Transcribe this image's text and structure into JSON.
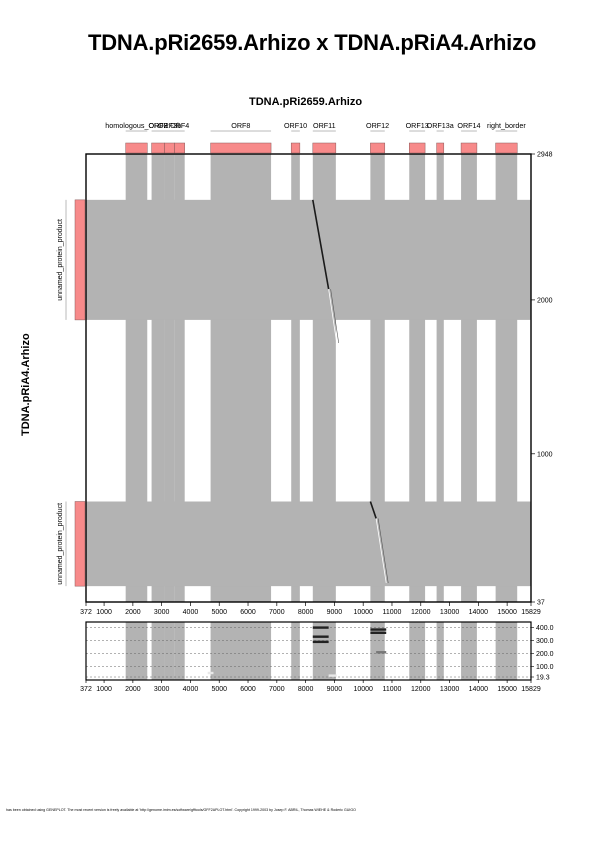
{
  "title": "TDNA.pRi2659.Arhizo x TDNA.pRiA4.Arhizo",
  "footer": "has been obtained using GENEPLOT. The most recent version is freely available at 'http://genome.imim.es/software/gfftools/GFF2APLOT.html'. Copyright 1999-2003 by Josep F. ABRIL, Thomas WIEHE & Roderic GUIGO",
  "chart_data": [
    {
      "type": "scatter",
      "subtype": "dotplot",
      "xlabel": "TDNA.pRi2659.Arhizo",
      "ylabel": "TDNA.pRiA4.Arhizo",
      "xlim": [
        372,
        15829
      ],
      "ylim": [
        37,
        2948
      ],
      "x_ticks": [
        "372",
        "1000",
        "2000",
        "3000",
        "4000",
        "5000",
        "6000",
        "7000",
        "8000",
        "9000",
        "10000",
        "11000",
        "12000",
        "13000",
        "14000",
        "15000",
        "15829"
      ],
      "y_ticks": [
        "37",
        "1000",
        "2000",
        "2948"
      ],
      "x_features": [
        {
          "label": "homologous_ORF2",
          "start": 1750,
          "end": 2500
        },
        {
          "label": "ORF3",
          "start": 2650,
          "end": 3100
        },
        {
          "label": "ORF3b",
          "start": 3100,
          "end": 3450
        },
        {
          "label": "ORF4",
          "start": 3450,
          "end": 3800
        },
        {
          "label": "ORF8",
          "start": 4700,
          "end": 6800
        },
        {
          "label": "ORF10",
          "start": 7500,
          "end": 7800
        },
        {
          "label": "ORF11",
          "start": 8250,
          "end": 9050
        },
        {
          "label": "ORF12",
          "start": 10250,
          "end": 10750
        },
        {
          "label": "ORF13",
          "start": 11600,
          "end": 12150
        },
        {
          "label": "ORF13a",
          "start": 12550,
          "end": 12800
        },
        {
          "label": "ORF14",
          "start": 13400,
          "end": 13950
        },
        {
          "label": "right_border",
          "start": 14600,
          "end": 15350
        }
      ],
      "y_features": [
        {
          "label": "unnamed_protein_product",
          "start": 1870,
          "end": 2650
        },
        {
          "label": "unnamed_protein_product",
          "start": 140,
          "end": 690
        }
      ],
      "alignments": [
        {
          "x": [
            8250,
            8800
          ],
          "y": [
            2650,
            2070
          ],
          "score": 400
        },
        {
          "x": [
            8800,
            9080
          ],
          "y": [
            2070,
            1720
          ],
          "score": 30
        },
        {
          "x": [
            10250,
            10450
          ],
          "y": [
            690,
            580
          ],
          "score": 400
        },
        {
          "x": [
            10450,
            10800
          ],
          "y": [
            580,
            160
          ],
          "score": 150
        }
      ],
      "score_panel": {
        "ylim": [
          19.3,
          420
        ],
        "y_ticks": [
          "19.3",
          "100.0",
          "200.0",
          "300.0",
          "400.0"
        ],
        "bars": [
          {
            "x": [
              8250,
              8800
            ],
            "score": 400
          },
          {
            "x": [
              8250,
              8800
            ],
            "score": 330
          },
          {
            "x": [
              8250,
              8800
            ],
            "score": 290
          },
          {
            "x": [
              8800,
              9080
            ],
            "score": 30
          },
          {
            "x": [
              10250,
              10800
            ],
            "score": 385
          },
          {
            "x": [
              10250,
              10800
            ],
            "score": 360
          },
          {
            "x": [
              10450,
              10800
            ],
            "score": 210
          },
          {
            "x": [
              4600,
              4800
            ],
            "score": 50
          }
        ]
      },
      "colors": {
        "feature": "#f78a8a",
        "shade": "#b3b3b3",
        "hit": "#1a1a1a"
      },
      "grid": true
    }
  ]
}
